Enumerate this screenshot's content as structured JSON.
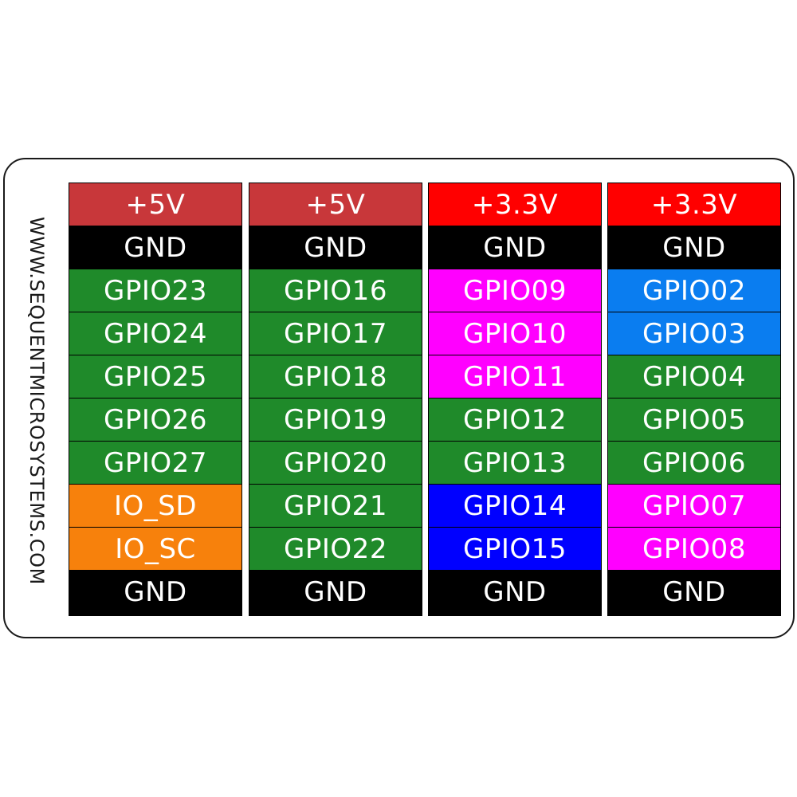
{
  "vendor_text": "WWW.SEQUENTMICROSYSTEMS.COM",
  "columns": [
    [
      {
        "label": "+5V",
        "color": "#c8373a"
      },
      {
        "label": "GND",
        "color": "#000000"
      },
      {
        "label": "GPIO23",
        "color": "#1f8a2a"
      },
      {
        "label": "GPIO24",
        "color": "#1f8a2a"
      },
      {
        "label": "GPIO25",
        "color": "#1f8a2a"
      },
      {
        "label": "GPIO26",
        "color": "#1f8a2a"
      },
      {
        "label": "GPIO27",
        "color": "#1f8a2a"
      },
      {
        "label": "IO_SD",
        "color": "#f7810c"
      },
      {
        "label": "IO_SC",
        "color": "#f7810c"
      },
      {
        "label": "GND",
        "color": "#000000"
      }
    ],
    [
      {
        "label": "+5V",
        "color": "#c8373a"
      },
      {
        "label": "GND",
        "color": "#000000"
      },
      {
        "label": "GPIO16",
        "color": "#1f8a2a"
      },
      {
        "label": "GPIO17",
        "color": "#1f8a2a"
      },
      {
        "label": "GPIO18",
        "color": "#1f8a2a"
      },
      {
        "label": "GPIO19",
        "color": "#1f8a2a"
      },
      {
        "label": "GPIO20",
        "color": "#1f8a2a"
      },
      {
        "label": "GPIO21",
        "color": "#1f8a2a"
      },
      {
        "label": "GPIO22",
        "color": "#1f8a2a"
      },
      {
        "label": "GND",
        "color": "#000000"
      }
    ],
    [
      {
        "label": "+3.3V",
        "color": "#ff0000"
      },
      {
        "label": "GND",
        "color": "#000000"
      },
      {
        "label": "GPIO09",
        "color": "#ff00ff"
      },
      {
        "label": "GPIO10",
        "color": "#ff00ff"
      },
      {
        "label": "GPIO11",
        "color": "#ff00ff"
      },
      {
        "label": "GPIO12",
        "color": "#1f8a2a"
      },
      {
        "label": "GPIO13",
        "color": "#1f8a2a"
      },
      {
        "label": "GPIO14",
        "color": "#0000ff"
      },
      {
        "label": "GPIO15",
        "color": "#0000ff"
      },
      {
        "label": "GND",
        "color": "#000000"
      }
    ],
    [
      {
        "label": "+3.3V",
        "color": "#ff0000"
      },
      {
        "label": "GND",
        "color": "#000000"
      },
      {
        "label": "GPIO02",
        "color": "#0a7df0"
      },
      {
        "label": "GPIO03",
        "color": "#0a7df0"
      },
      {
        "label": "GPIO04",
        "color": "#1f8a2a"
      },
      {
        "label": "GPIO05",
        "color": "#1f8a2a"
      },
      {
        "label": "GPIO06",
        "color": "#1f8a2a"
      },
      {
        "label": "GPIO07",
        "color": "#ff00ff"
      },
      {
        "label": "GPIO08",
        "color": "#ff00ff"
      },
      {
        "label": "GND",
        "color": "#000000"
      }
    ]
  ]
}
